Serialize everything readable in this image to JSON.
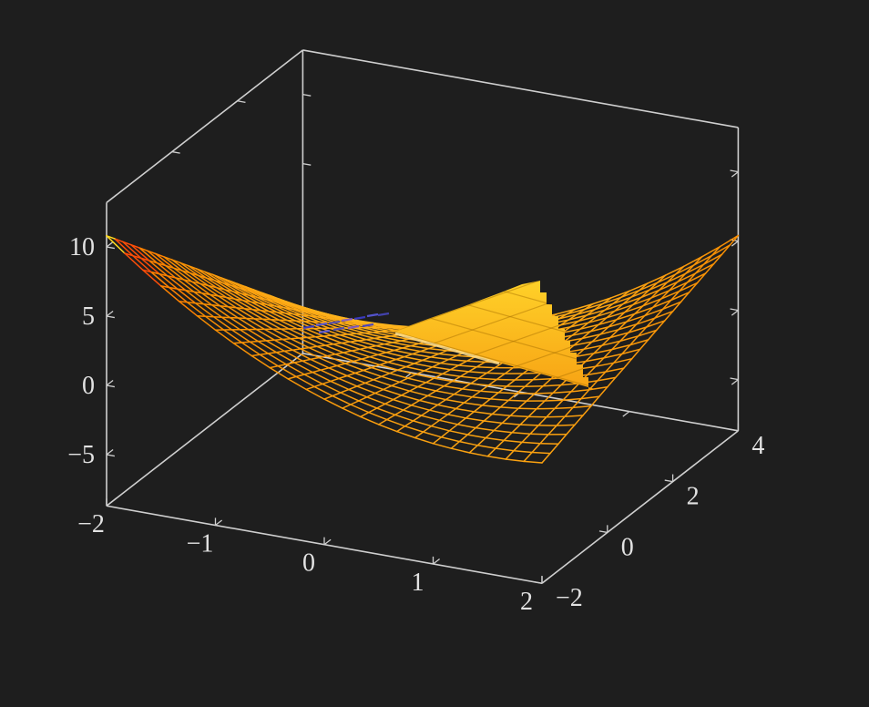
{
  "page": {
    "background": "#1e1e1e"
  },
  "chart_data": {
    "type": "surface3d",
    "title": "",
    "legend": null,
    "grid": "off",
    "axes": {
      "x": {
        "range": [
          -2,
          2
        ],
        "ticks": [
          -2,
          -1,
          0,
          1,
          2
        ]
      },
      "y": {
        "range": [
          -2,
          4
        ],
        "ticks": [
          -2,
          0,
          2,
          4
        ]
      },
      "z": {
        "range": [
          -8.7,
          13.2
        ],
        "ticks": [
          -5,
          0,
          5,
          10
        ]
      }
    },
    "surfaces": [
      {
        "name": "wireframe-mesh",
        "style": "wireframe",
        "grid_cells": [
          24,
          24
        ],
        "domain": {
          "x": [
            -2,
            2
          ],
          "y": [
            -2,
            4
          ]
        },
        "fit_note": "quadratic saddle fitted to screenshot: z = 0.9*(x^2 + x*y - x - y)",
        "coeffs": {
          "x2": 0.9,
          "xy": 0.9,
          "y2": 0,
          "x": -0.9,
          "y": -0.9,
          "c": 0
        },
        "corner_values": {
          "xm_ym": 10.8,
          "xp_ym": 0.0,
          "xp_yp": 5.4,
          "xm_yp": -5.4
        }
      },
      {
        "name": "filled-plane-patch",
        "style": "filled",
        "description": "solid yellow plane patch visible where it rises above the mesh; jagged per-quad boundary on its right side"
      }
    ],
    "palette": {
      "bands": [
        {
          "min": 9.8,
          "color": "#ffd91e"
        },
        {
          "min": 8.0,
          "color": "#ff4e08"
        },
        {
          "min": 6.3,
          "color": "#ff8200"
        }
      ],
      "low": "#ffb61e",
      "high": "#f78a00",
      "low_z": -5.4,
      "high_z": 6.3
    },
    "view": {
      "origin": [
        117,
        423
      ],
      "xmin": -2,
      "ymin": -2,
      "ex": [
        119.5,
        21.25
      ],
      "ey": [
        35.9,
        -27.9
      ],
      "ez": [
        0,
        -15.2
      ],
      "zmin": -8.7,
      "zmax": 13.2
    },
    "box_color": "#cfcfcf",
    "box_width": 1.6,
    "tick_len": 9,
    "label_color": "#e2e2e2",
    "label_font_size": 28,
    "label_offsets": {
      "x": [
        -17,
        29
      ],
      "y": [
        15,
        25
      ],
      "z": [
        -13,
        9
      ]
    },
    "mirror_ticks": {
      "back_bottom_x": [
        -1,
        0,
        1
      ],
      "top_left_y": [
        0,
        2
      ],
      "back_vert_z": [
        5,
        10
      ],
      "right_vert_z": [
        -5,
        0,
        5,
        10
      ]
    },
    "mesh_line_width": 1.5,
    "fill_region": {
      "tip": [
        432,
        364
      ],
      "top_edge": [
        [
          432,
          364
        ],
        [
          470,
          350
        ],
        [
          510,
          336
        ],
        [
          550,
          321
        ],
        [
          573,
          312
        ],
        [
          593,
          308
        ]
      ],
      "staircase": [
        [
          593,
          321
        ],
        [
          600,
          321
        ],
        [
          600,
          334
        ],
        [
          606,
          334
        ],
        [
          606,
          347
        ],
        [
          613,
          347
        ],
        [
          613,
          361
        ],
        [
          620,
          361
        ],
        [
          620,
          374
        ],
        [
          626,
          374
        ],
        [
          626,
          387
        ],
        [
          633,
          387
        ],
        [
          633,
          400
        ],
        [
          640,
          400
        ],
        [
          640,
          414
        ],
        [
          646,
          414
        ],
        [
          646,
          427
        ],
        [
          653,
          427
        ]
      ],
      "bottom_edge_back": [
        [
          600,
          412
        ],
        [
          540,
          396
        ],
        [
          483,
          379
        ]
      ],
      "gradient_top": "#ffd42a",
      "gradient_bottom": "#f7a113",
      "grid_color": "rgba(163,108,0,0.45)",
      "grid_slope_a": 0.278,
      "grid_spacing_a": 26,
      "grid_slope_b": -0.35,
      "grid_spacing_b": 21,
      "edge_highlight": {
        "from": [
          434,
          366
        ],
        "to": [
          548,
          399
        ],
        "color": "#ffdf8e",
        "width": 3,
        "opacity": 0.85
      }
    },
    "artifacts": {
      "description": "blue z-fighting dashes where plane grazes the surface",
      "colors": [
        "#3c3ccd",
        "#5a5ae0",
        "#4646bb",
        "#7b55cc"
      ],
      "dash": [
        12,
        -2
      ],
      "row1": [
        [
          333,
          360
        ],
        [
          347,
          357
        ],
        [
          361,
          355
        ],
        [
          375,
          352
        ],
        [
          389,
          350
        ],
        [
          403,
          347
        ],
        [
          415,
          346
        ]
      ],
      "row2": [
        [
          350,
          365
        ],
        [
          366,
          362
        ],
        [
          382,
          360
        ],
        [
          398,
          358
        ]
      ]
    }
  }
}
